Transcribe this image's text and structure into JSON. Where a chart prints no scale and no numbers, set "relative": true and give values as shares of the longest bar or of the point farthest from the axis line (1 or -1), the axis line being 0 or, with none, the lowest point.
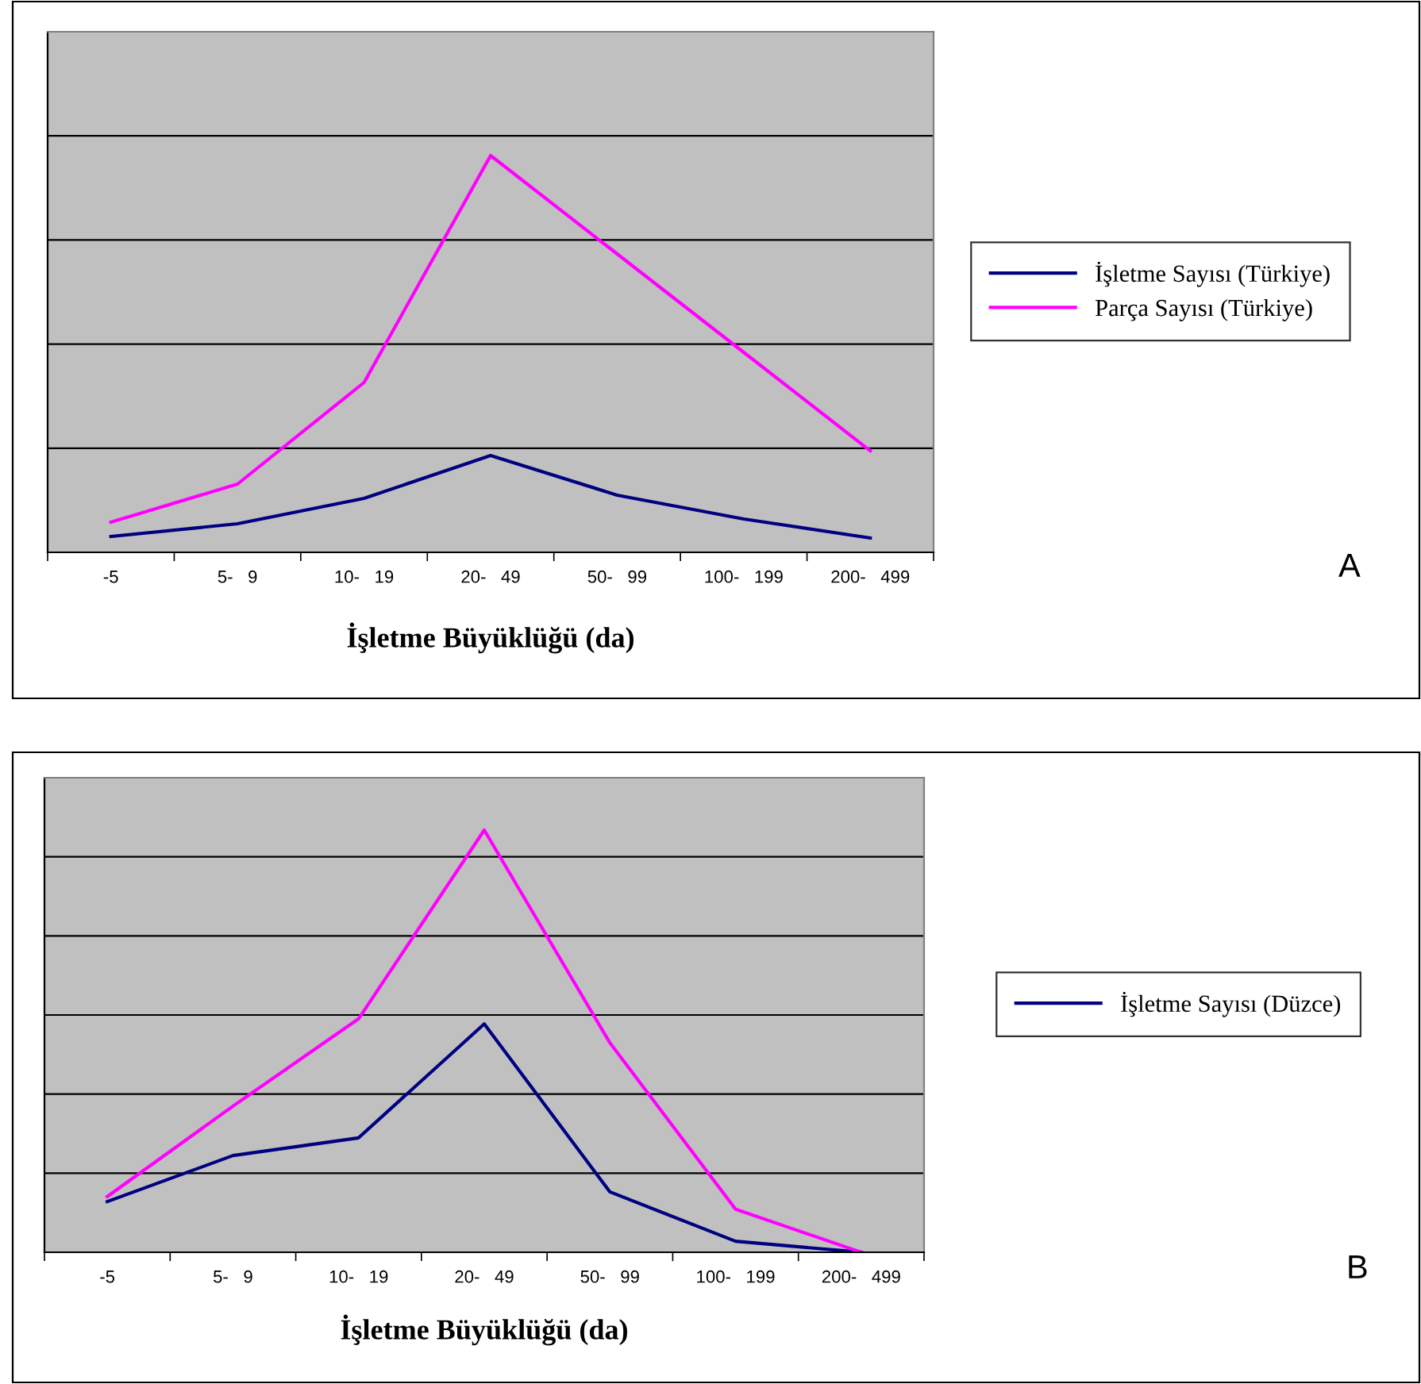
{
  "chart_data": [
    {
      "type": "line",
      "relative": true,
      "xlabel": "İşletme Büyüklüğü (da)",
      "categories": [
        "-5",
        "5-   9",
        "10-   19",
        "20-   49",
        "50-   99",
        "100-   199",
        "200-   499"
      ],
      "series": [
        {
          "name": "İşletme Sayısı (Türkiye)",
          "color": "#000080",
          "values": [
            0.04,
            0.072,
            0.136,
            0.244,
            0.144,
            0.084,
            0.036
          ]
        },
        {
          "name": "Parça Sayısı (Türkiye)",
          "color": "#ff00ff",
          "values": [
            0.076,
            0.172,
            0.428,
            1,
            0.752,
            0.504,
            0.256
          ]
        }
      ],
      "grid": "y",
      "legend": "right",
      "marker": "none",
      "annotations": [
        "A"
      ]
    },
    {
      "type": "line",
      "relative": true,
      "xlabel": "İşletme Büyüklüğü (da)",
      "categories": [
        "-5",
        "5-   9",
        "10-   19",
        "20-   49",
        "50-   99",
        "100-   199",
        "200-   499"
      ],
      "series": [
        {
          "name": "İşletme Sayısı (Düzce)",
          "color": "#000080",
          "values": [
            0.12,
            0.229,
            0.271,
            0.541,
            0.143,
            0.026,
            0
          ]
        },
        {
          "color": "#ff00ff",
          "values": [
            0.132,
            0.346,
            0.553,
            1,
            0.496,
            0.102,
            0
          ]
        }
      ],
      "grid": "y",
      "legend": "right",
      "marker": "none",
      "annotations": [
        "B"
      ]
    }
  ]
}
